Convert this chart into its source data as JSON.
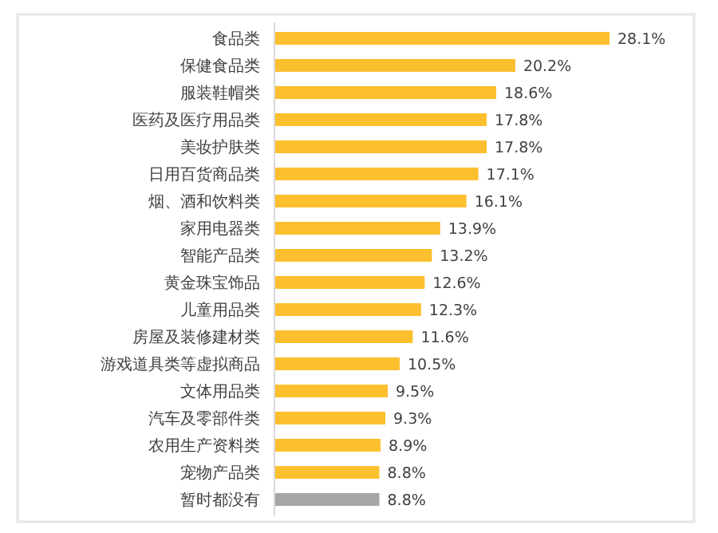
{
  "chart_data": {
    "type": "bar",
    "orientation": "horizontal",
    "tick_labels": "y",
    "categories": [
      "食品类",
      "保健食品类",
      "服装鞋帽类",
      "医药及医疗用品类",
      "美妆护肤类",
      "日用百货商品类",
      "烟、酒和饮料类",
      "家用电器类",
      "智能产品类",
      "黄金珠宝饰品",
      "儿童用品类",
      "房屋及装修建材类",
      "游戏道具类等虚拟商品",
      "文体用品类",
      "汽车及零部件类",
      "农用生产资料类",
      "宠物产品类",
      "暂时都没有"
    ],
    "values": [
      28.1,
      20.2,
      18.6,
      17.8,
      17.8,
      17.1,
      16.1,
      13.9,
      13.2,
      12.6,
      12.3,
      11.6,
      10.5,
      9.5,
      9.3,
      8.9,
      8.8,
      8.8
    ],
    "value_labels": [
      "28.1%",
      "20.2%",
      "18.6%",
      "17.8%",
      "17.8%",
      "17.1%",
      "16.1%",
      "13.9%",
      "13.2%",
      "12.6%",
      "12.3%",
      "11.6%",
      "10.5%",
      "9.5%",
      "9.3%",
      "8.9%",
      "8.8%",
      "8.8%"
    ],
    "colors": [
      "#fcbf2e",
      "#fcbf2e",
      "#fcbf2e",
      "#fcbf2e",
      "#fcbf2e",
      "#fcbf2e",
      "#fcbf2e",
      "#fcbf2e",
      "#fcbf2e",
      "#fcbf2e",
      "#fcbf2e",
      "#fcbf2e",
      "#fcbf2e",
      "#fcbf2e",
      "#fcbf2e",
      "#fcbf2e",
      "#fcbf2e",
      "#a6a6a6"
    ]
  }
}
